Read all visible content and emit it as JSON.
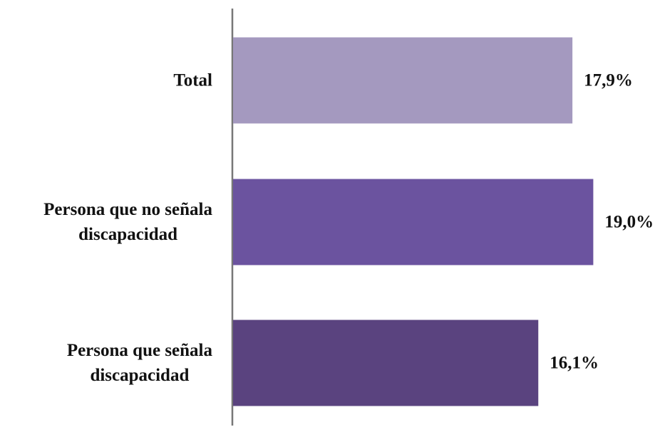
{
  "chart_data": {
    "type": "bar",
    "orientation": "horizontal",
    "categories": [
      "Total",
      "Persona que no señala discapacidad",
      "Persona que señala discapacidad"
    ],
    "category_lines": [
      [
        "Total"
      ],
      [
        "Persona que no señala",
        "discapacidad"
      ],
      [
        "Persona que señala",
        "discapacidad"
      ]
    ],
    "values": [
      17.9,
      19.0,
      16.1
    ],
    "value_labels": [
      "17,9%",
      "19,0%",
      "16,1%"
    ],
    "colors": [
      "#a499bf",
      "#6b539f",
      "#5a437f"
    ],
    "title": "",
    "xlabel": "",
    "ylabel": "",
    "grid": false,
    "legend": "none"
  }
}
